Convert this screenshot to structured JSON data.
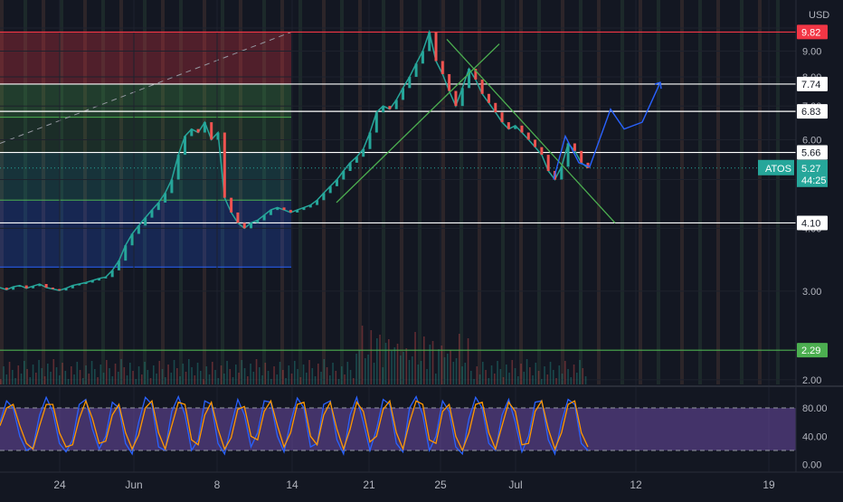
{
  "currency": "USD",
  "symbol": "ATOS",
  "colors": {
    "background": "#131722",
    "up": "#26a69a",
    "down": "#ef5350",
    "resistance": "#f23645",
    "support": "#4caf50",
    "level": "#ffffff",
    "stoch_k": "#2962ff",
    "stoch_d": "#ff9800",
    "stoch_band": "#7e57c2",
    "projection": "#2962ff",
    "trend": "#4caf50"
  },
  "chart_data": [
    {
      "type": "line",
      "name": "price",
      "x_ticks": [
        "24",
        "Jun",
        "8",
        "14",
        "21",
        "25",
        "Jul",
        "12",
        "19"
      ],
      "y_ticks": [
        "2.00",
        "3.00",
        "4.00",
        "5.00",
        "6.00",
        "7.00",
        "8.00",
        "9.00",
        "10.00"
      ],
      "y_scale": "log",
      "ylim": [
        1.95,
        11.0
      ],
      "last_price": {
        "label": "ATOS",
        "value": "5.27",
        "countdown": "44:25"
      },
      "levels": [
        {
          "value": "9.82",
          "color": "#f23645"
        },
        {
          "value": "7.74",
          "color": "#ffffff"
        },
        {
          "value": "6.83",
          "color": "#ffffff"
        },
        {
          "value": "5.66",
          "color": "#ffffff"
        },
        {
          "value": "4.10",
          "color": "#ffffff"
        },
        {
          "value": "2.29",
          "color": "#4caf50"
        }
      ],
      "series": [
        {
          "values": [
            3.05,
            3.02,
            3.06,
            3.08,
            3.04,
            3.07,
            3.1,
            3.05,
            3.03,
            3.01,
            3.04,
            3.08,
            3.1,
            3.12,
            3.15,
            3.18,
            3.2,
            3.3,
            3.45,
            3.7,
            3.9,
            4.05,
            4.2,
            4.35,
            4.5,
            4.7,
            5.0,
            5.6,
            6.1,
            6.3,
            6.2,
            6.5,
            6.0,
            6.2,
            4.6,
            4.3,
            4.1,
            4.0,
            4.1,
            4.15,
            4.25,
            4.35,
            4.4,
            4.35,
            4.3,
            4.35,
            4.4,
            4.45,
            4.55,
            4.7,
            4.85,
            5.0,
            5.2,
            5.4,
            5.55,
            5.75,
            6.2,
            6.8,
            7.0,
            6.9,
            7.2,
            7.6,
            8.0,
            8.5,
            9.0,
            9.82,
            8.6,
            8.1,
            7.5,
            7.0,
            7.6,
            8.3,
            7.9,
            7.4,
            7.1,
            6.8,
            6.5,
            6.3,
            6.4,
            6.2,
            6.0,
            5.8,
            5.6,
            5.2,
            5.0,
            5.3,
            5.9,
            5.7,
            5.4,
            5.27
          ]
        }
      ]
    },
    {
      "type": "line",
      "name": "stochastic",
      "y_ticks": [
        "80.00",
        "40.00",
        "0.00"
      ],
      "ylim": [
        0,
        100
      ],
      "band": [
        20,
        80
      ],
      "series": [
        {
          "name": "",
          "color": "#2962ff",
          "values": [
            60,
            90,
            80,
            40,
            20,
            25,
            70,
            95,
            75,
            30,
            18,
            35,
            85,
            92,
            50,
            22,
            40,
            88,
            80,
            30,
            15,
            60,
            95,
            85,
            25,
            20,
            75,
            96,
            70,
            20,
            35,
            90,
            85,
            30,
            15,
            55,
            92,
            70,
            25,
            45,
            90,
            88,
            40,
            18,
            60,
            94,
            80,
            25,
            30,
            85,
            90,
            35,
            15,
            70,
            95,
            60,
            20,
            50,
            92,
            85,
            30,
            18,
            80,
            96,
            70,
            20,
            40,
            90,
            75,
            25,
            15,
            65,
            95,
            80,
            30,
            20,
            70,
            92,
            60,
            18,
            40,
            88,
            90,
            35,
            15,
            60,
            92,
            85,
            30,
            20
          ]
        },
        {
          "name": "",
          "color": "#ff9800",
          "values": [
            55,
            80,
            85,
            55,
            30,
            22,
            55,
            85,
            85,
            45,
            25,
            28,
            65,
            90,
            65,
            30,
            33,
            70,
            85,
            45,
            22,
            42,
            80,
            90,
            45,
            22,
            55,
            88,
            85,
            35,
            28,
            70,
            88,
            50,
            22,
            38,
            78,
            82,
            40,
            35,
            75,
            90,
            55,
            25,
            45,
            85,
            88,
            40,
            28,
            70,
            88,
            50,
            22,
            50,
            88,
            75,
            32,
            40,
            78,
            90,
            45,
            22,
            60,
            90,
            85,
            35,
            30,
            75,
            85,
            40,
            20,
            45,
            85,
            88,
            45,
            22,
            55,
            88,
            75,
            28,
            30,
            75,
            90,
            50,
            22,
            45,
            85,
            90,
            45,
            25
          ]
        }
      ]
    }
  ]
}
